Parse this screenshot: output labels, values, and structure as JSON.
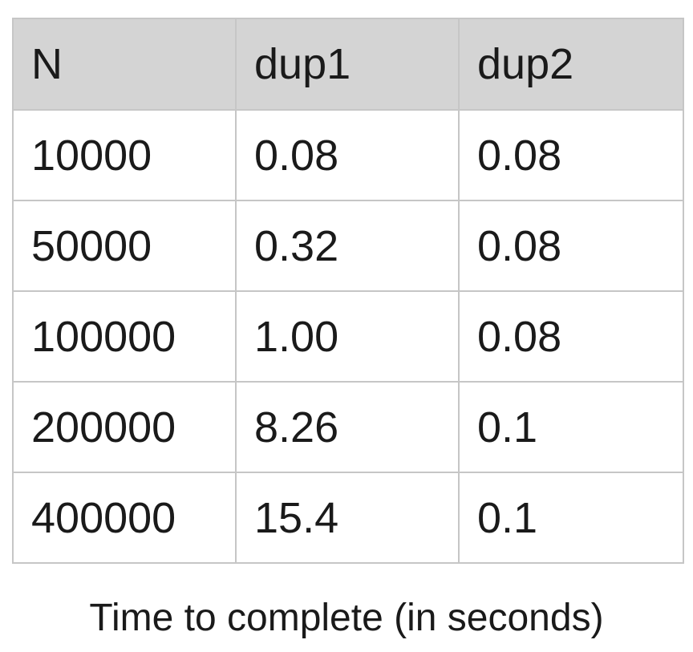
{
  "table": {
    "headers": [
      "N",
      "dup1",
      "dup2"
    ],
    "rows": [
      [
        "10000",
        "0.08",
        "0.08"
      ],
      [
        "50000",
        "0.32",
        "0.08"
      ],
      [
        "100000",
        "1.00",
        "0.08"
      ],
      [
        "200000",
        "8.26",
        "0.1"
      ],
      [
        "400000",
        "15.4",
        "0.1"
      ]
    ]
  },
  "caption": "Time to complete (in seconds)",
  "colors": {
    "header_background": "#d4d4d4",
    "border": "#c6c6c6",
    "text": "#1a1a1a"
  }
}
